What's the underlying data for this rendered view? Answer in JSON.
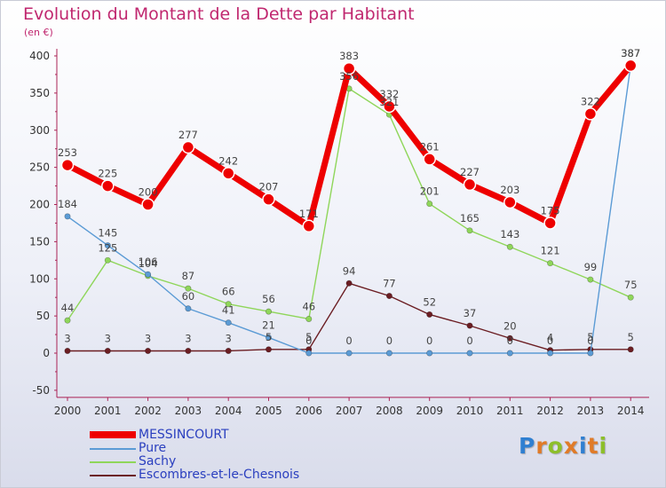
{
  "title": "Evolution du Montant de la Dette par Habitant",
  "subtitle": "(en €)",
  "logo": {
    "text": "Proxiti",
    "colors": [
      "#2f7fd1",
      "#e07b28",
      "#8dbf2a",
      "#e07b28",
      "#2f7fd1",
      "#e07b28",
      "#8dbf2a"
    ]
  },
  "chart_data": {
    "type": "line",
    "x": [
      "2000",
      "2001",
      "2002",
      "2003",
      "2004",
      "2005",
      "2006",
      "2007",
      "2008",
      "2009",
      "2010",
      "2011",
      "2012",
      "2013",
      "2014"
    ],
    "ylim": [
      -50,
      400
    ],
    "yticks": [
      "400",
      "350",
      "300",
      "250",
      "200",
      "150",
      "100",
      "50",
      "0",
      "-50"
    ],
    "ytick_values": [
      400,
      350,
      300,
      250,
      200,
      150,
      100,
      50,
      0,
      -50
    ],
    "grid": false,
    "legend_position": "bottom-left",
    "series": [
      {
        "name": "MESSINCOURT",
        "color": "#ee0000",
        "values": [
          253,
          225,
          200,
          277,
          242,
          207,
          171,
          383,
          332,
          261,
          227,
          203,
          175,
          322,
          387
        ],
        "labels": [
          "253",
          "225",
          "200",
          "277",
          "242",
          "207",
          "171",
          "383",
          "332",
          "261",
          "227",
          "203",
          "175",
          "322",
          "387"
        ]
      },
      {
        "name": "Pure",
        "color": "#5b9bd5",
        "values": [
          184,
          145,
          106,
          60,
          41,
          21,
          0,
          0,
          0,
          0,
          0,
          0,
          0,
          0,
          387
        ],
        "labels": [
          "184",
          "145",
          "106",
          "60",
          "41",
          "21",
          "0",
          "0",
          "0",
          "0",
          "0",
          "0",
          "0",
          "0",
          "387"
        ]
      },
      {
        "name": "Sachy",
        "color": "#8fd65a",
        "values": [
          44,
          125,
          104,
          87,
          66,
          56,
          46,
          356,
          321,
          201,
          165,
          143,
          121,
          99,
          75
        ],
        "labels": [
          "44",
          "125",
          "104",
          "87",
          "66",
          "56",
          "46",
          "356",
          "321",
          "201",
          "165",
          "143",
          "121",
          "99",
          "75"
        ]
      },
      {
        "name": "Escombres-et-le-Chesnois",
        "color": "#6b1d22",
        "values": [
          3,
          3,
          3,
          3,
          3,
          5,
          5,
          94,
          77,
          52,
          37,
          20,
          4,
          5,
          5
        ],
        "labels": [
          "3",
          "3",
          "3",
          "3",
          "3",
          "5",
          "5",
          "94",
          "77",
          "52",
          "37",
          "20",
          "4",
          "5",
          "5"
        ]
      }
    ]
  }
}
